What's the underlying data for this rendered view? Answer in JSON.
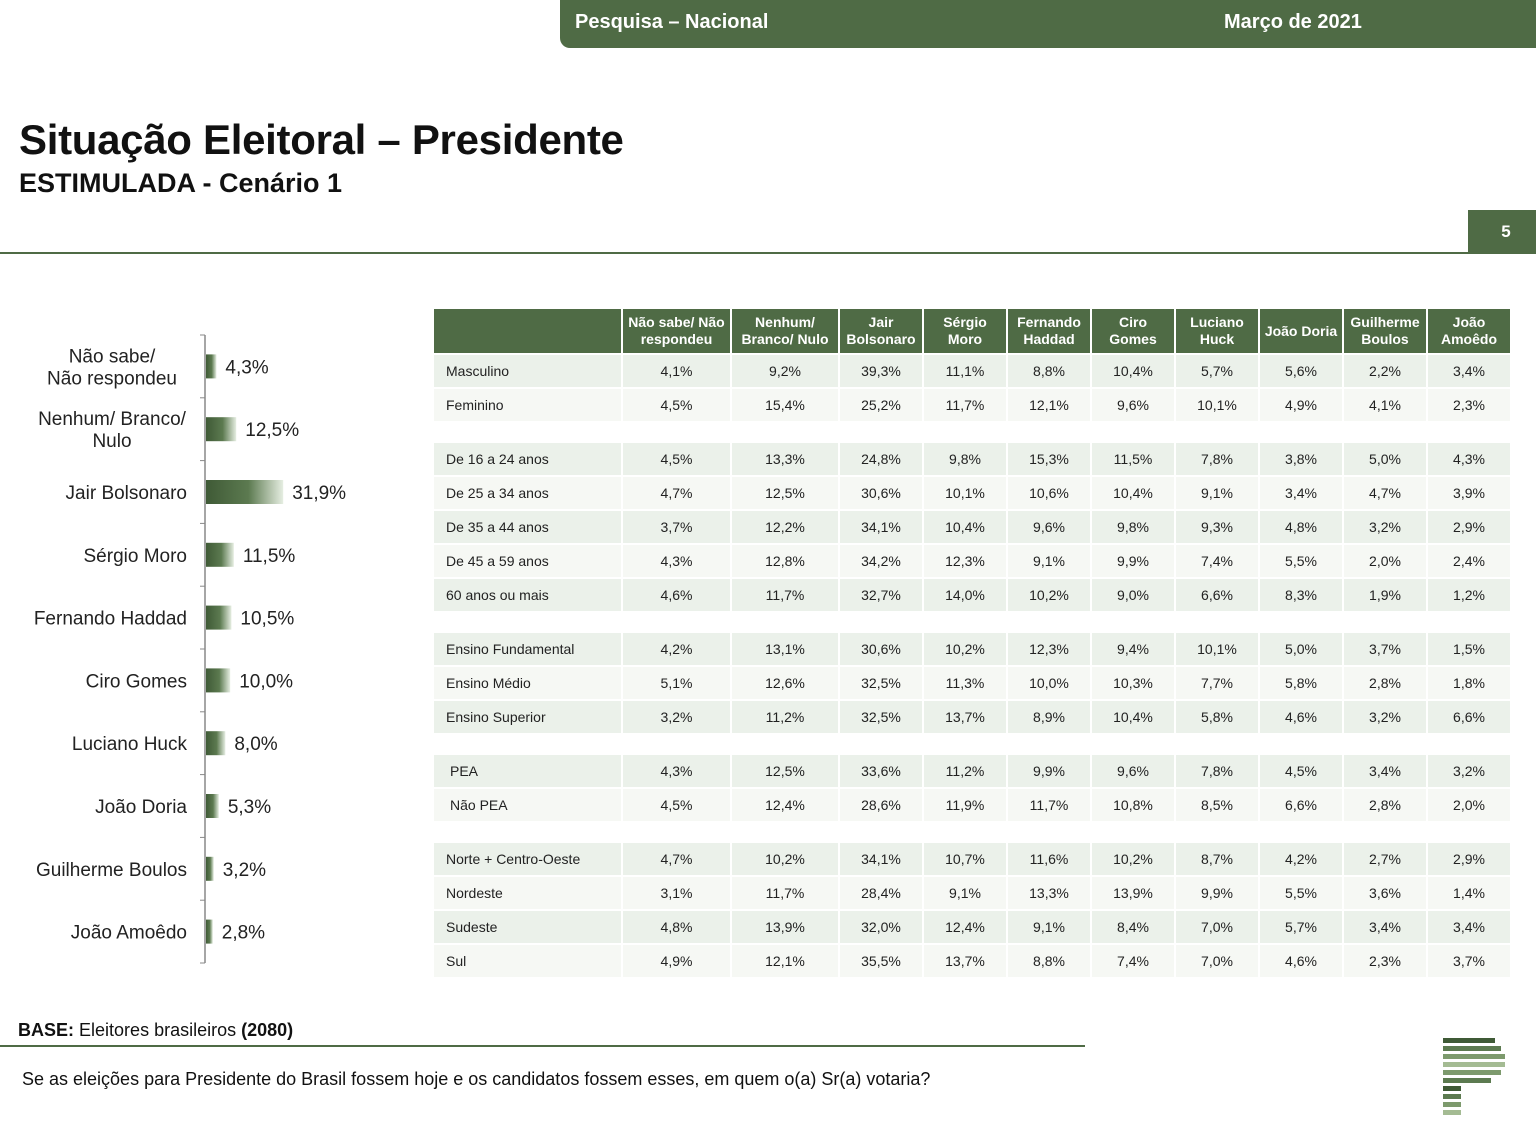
{
  "header": {
    "survey": "Pesquisa – Nacional",
    "date": "Março de 2021"
  },
  "title": "Situação Eleitoral – Presidente",
  "subtitle": "ESTIMULADA - Cenário 1",
  "page_number": "5",
  "colors": {
    "brand_green": "#4f6b45",
    "table_row": "#ebf1ea",
    "table_row_alt": "#f6f8f4"
  },
  "chart_data": {
    "type": "bar",
    "orientation": "horizontal",
    "categories": [
      [
        "Não sabe/",
        "Não respondeu"
      ],
      [
        "Nenhum/ Branco/",
        "Nulo"
      ],
      [
        "Jair Bolsonaro"
      ],
      [
        "Sérgio Moro"
      ],
      [
        "Fernando Haddad"
      ],
      [
        "Ciro Gomes"
      ],
      [
        "Luciano Huck"
      ],
      [
        "João Doria"
      ],
      [
        "Guilherme Boulos"
      ],
      [
        "João Amoêdo"
      ]
    ],
    "values": [
      4.3,
      12.5,
      31.9,
      11.5,
      10.5,
      10.0,
      8.0,
      5.3,
      3.2,
      2.8
    ],
    "value_labels": [
      "4,3%",
      "12,5%",
      "31,9%",
      "11,5%",
      "10,5%",
      "10,0%",
      "8,0%",
      "5,3%",
      "3,2%",
      "2,8%"
    ],
    "xlim": [
      0,
      100
    ],
    "grid": false,
    "legend": "none"
  },
  "table": {
    "headers": [
      "",
      [
        "Não sabe/ Não",
        "respondeu"
      ],
      [
        "Nenhum/",
        "Branco/ Nulo"
      ],
      [
        "Jair",
        "Bolsonaro"
      ],
      [
        "Sérgio",
        "Moro"
      ],
      [
        "Fernando",
        "Haddad"
      ],
      [
        "Ciro",
        "Gomes"
      ],
      [
        "Luciano",
        "Huck"
      ],
      [
        "João Doria"
      ],
      [
        "Guilherme",
        "Boulos"
      ],
      [
        "João",
        "Amoêdo"
      ]
    ],
    "groups": [
      [
        {
          "label": "Masculino",
          "values": [
            "4,1%",
            "9,2%",
            "39,3%",
            "11,1%",
            "8,8%",
            "10,4%",
            "5,7%",
            "5,6%",
            "2,2%",
            "3,4%"
          ]
        },
        {
          "label": "Feminino",
          "values": [
            "4,5%",
            "15,4%",
            "25,2%",
            "11,7%",
            "12,1%",
            "9,6%",
            "10,1%",
            "4,9%",
            "4,1%",
            "2,3%"
          ]
        }
      ],
      [
        {
          "label": "De 16 a 24 anos",
          "values": [
            "4,5%",
            "13,3%",
            "24,8%",
            "9,8%",
            "15,3%",
            "11,5%",
            "7,8%",
            "3,8%",
            "5,0%",
            "4,3%"
          ]
        },
        {
          "label": "De 25 a 34 anos",
          "values": [
            "4,7%",
            "12,5%",
            "30,6%",
            "10,1%",
            "10,6%",
            "10,4%",
            "9,1%",
            "3,4%",
            "4,7%",
            "3,9%"
          ]
        },
        {
          "label": "De 35 a 44 anos",
          "values": [
            "3,7%",
            "12,2%",
            "34,1%",
            "10,4%",
            "9,6%",
            "9,8%",
            "9,3%",
            "4,8%",
            "3,2%",
            "2,9%"
          ]
        },
        {
          "label": "De 45 a 59 anos",
          "values": [
            "4,3%",
            "12,8%",
            "34,2%",
            "12,3%",
            "9,1%",
            "9,9%",
            "7,4%",
            "5,5%",
            "2,0%",
            "2,4%"
          ]
        },
        {
          "label": "60 anos ou mais",
          "values": [
            "4,6%",
            "11,7%",
            "32,7%",
            "14,0%",
            "10,2%",
            "9,0%",
            "6,6%",
            "8,3%",
            "1,9%",
            "1,2%"
          ]
        }
      ],
      [
        {
          "label": "Ensino Fundamental",
          "values": [
            "4,2%",
            "13,1%",
            "30,6%",
            "10,2%",
            "12,3%",
            "9,4%",
            "10,1%",
            "5,0%",
            "3,7%",
            "1,5%"
          ]
        },
        {
          "label": "Ensino Médio",
          "values": [
            "5,1%",
            "12,6%",
            "32,5%",
            "11,3%",
            "10,0%",
            "10,3%",
            "7,7%",
            "5,8%",
            "2,8%",
            "1,8%"
          ]
        },
        {
          "label": "Ensino Superior",
          "values": [
            "3,2%",
            "11,2%",
            "32,5%",
            "13,7%",
            "8,9%",
            "10,4%",
            "5,8%",
            "4,6%",
            "3,2%",
            "6,6%"
          ]
        }
      ],
      [
        {
          "label": "PEA",
          "indent": true,
          "values": [
            "4,3%",
            "12,5%",
            "33,6%",
            "11,2%",
            "9,9%",
            "9,6%",
            "7,8%",
            "4,5%",
            "3,4%",
            "3,2%"
          ]
        },
        {
          "label": "Não PEA",
          "indent": true,
          "values": [
            "4,5%",
            "12,4%",
            "28,6%",
            "11,9%",
            "11,7%",
            "10,8%",
            "8,5%",
            "6,6%",
            "2,8%",
            "2,0%"
          ]
        }
      ],
      [
        {
          "label": "Norte + Centro-Oeste",
          "values": [
            "4,7%",
            "10,2%",
            "34,1%",
            "10,7%",
            "11,6%",
            "10,2%",
            "8,7%",
            "4,2%",
            "2,7%",
            "2,9%"
          ]
        },
        {
          "label": "Nordeste",
          "values": [
            "3,1%",
            "11,7%",
            "28,4%",
            "9,1%",
            "13,3%",
            "13,9%",
            "9,9%",
            "5,5%",
            "3,6%",
            "1,4%"
          ]
        },
        {
          "label": "Sudeste",
          "values": [
            "4,8%",
            "13,9%",
            "32,0%",
            "12,4%",
            "9,1%",
            "8,4%",
            "7,0%",
            "5,7%",
            "3,4%",
            "3,4%"
          ]
        },
        {
          "label": "Sul",
          "values": [
            "4,9%",
            "12,1%",
            "35,5%",
            "13,7%",
            "8,8%",
            "7,4%",
            "7,0%",
            "4,6%",
            "2,3%",
            "3,7%"
          ]
        }
      ]
    ]
  },
  "base": {
    "label": "BASE:",
    "text": "Eleitores brasileiros",
    "count": "(2080)"
  },
  "question": "Se as eleições para Presidente do Brasil fossem hoje e os candidatos fossem esses, em quem o(a) Sr(a) votaria?",
  "logo_icon": "stacked-bars-logo-icon"
}
